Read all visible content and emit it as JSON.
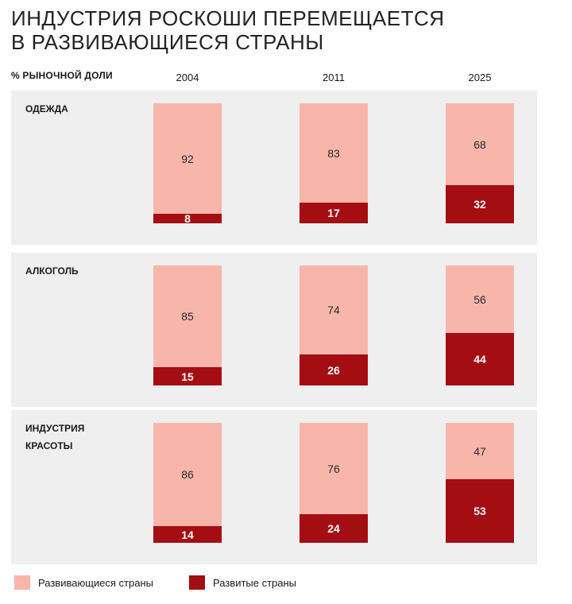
{
  "title_lines": [
    "ИНДУСТРИЯ РОСКОШИ ПЕРЕМЕЩАЕТСЯ",
    "В РАЗВИВАЮЩИЕСЯ СТРАНЫ"
  ],
  "unit_label": "% РЫНОЧНОЙ ДОЛИ",
  "colors": {
    "emerging": "#f8b6ab",
    "developed": "#a40d12",
    "panel_bg": "#efefef"
  },
  "chart_data": {
    "type": "bar",
    "stacked": true,
    "title": "ИНДУСТРИЯ РОСКОШИ ПЕРЕМЕЩАЕТСЯ В РАЗВИВАЮЩИЕСЯ СТРАНЫ",
    "ylabel": "% РЫНОЧНОЙ ДОЛИ",
    "categories": [
      "2004",
      "2011",
      "2025"
    ],
    "legend": [
      {
        "name": "Развивающиеся страны",
        "color": "#f8b6ab"
      },
      {
        "name": "Развитые страны",
        "color": "#a40d12"
      }
    ],
    "panels": [
      {
        "label_lines": [
          "ОДЕЖДА"
        ],
        "series": [
          {
            "name": "Развивающиеся страны",
            "values": [
              92,
              83,
              68
            ]
          },
          {
            "name": "Развитые страны",
            "values": [
              8,
              17,
              32
            ]
          }
        ]
      },
      {
        "label_lines": [
          "АЛКОГОЛЬ"
        ],
        "series": [
          {
            "name": "Развивающиеся страны",
            "values": [
              85,
              74,
              56
            ]
          },
          {
            "name": "Развитые страны",
            "values": [
              15,
              26,
              44
            ]
          }
        ]
      },
      {
        "label_lines": [
          "ИНДУСТРИЯ",
          "КРАСОТЫ"
        ],
        "series": [
          {
            "name": "Развивающиеся страны",
            "values": [
              86,
              76,
              47
            ]
          },
          {
            "name": "Развитые страны",
            "values": [
              14,
              24,
              53
            ]
          }
        ]
      }
    ]
  }
}
